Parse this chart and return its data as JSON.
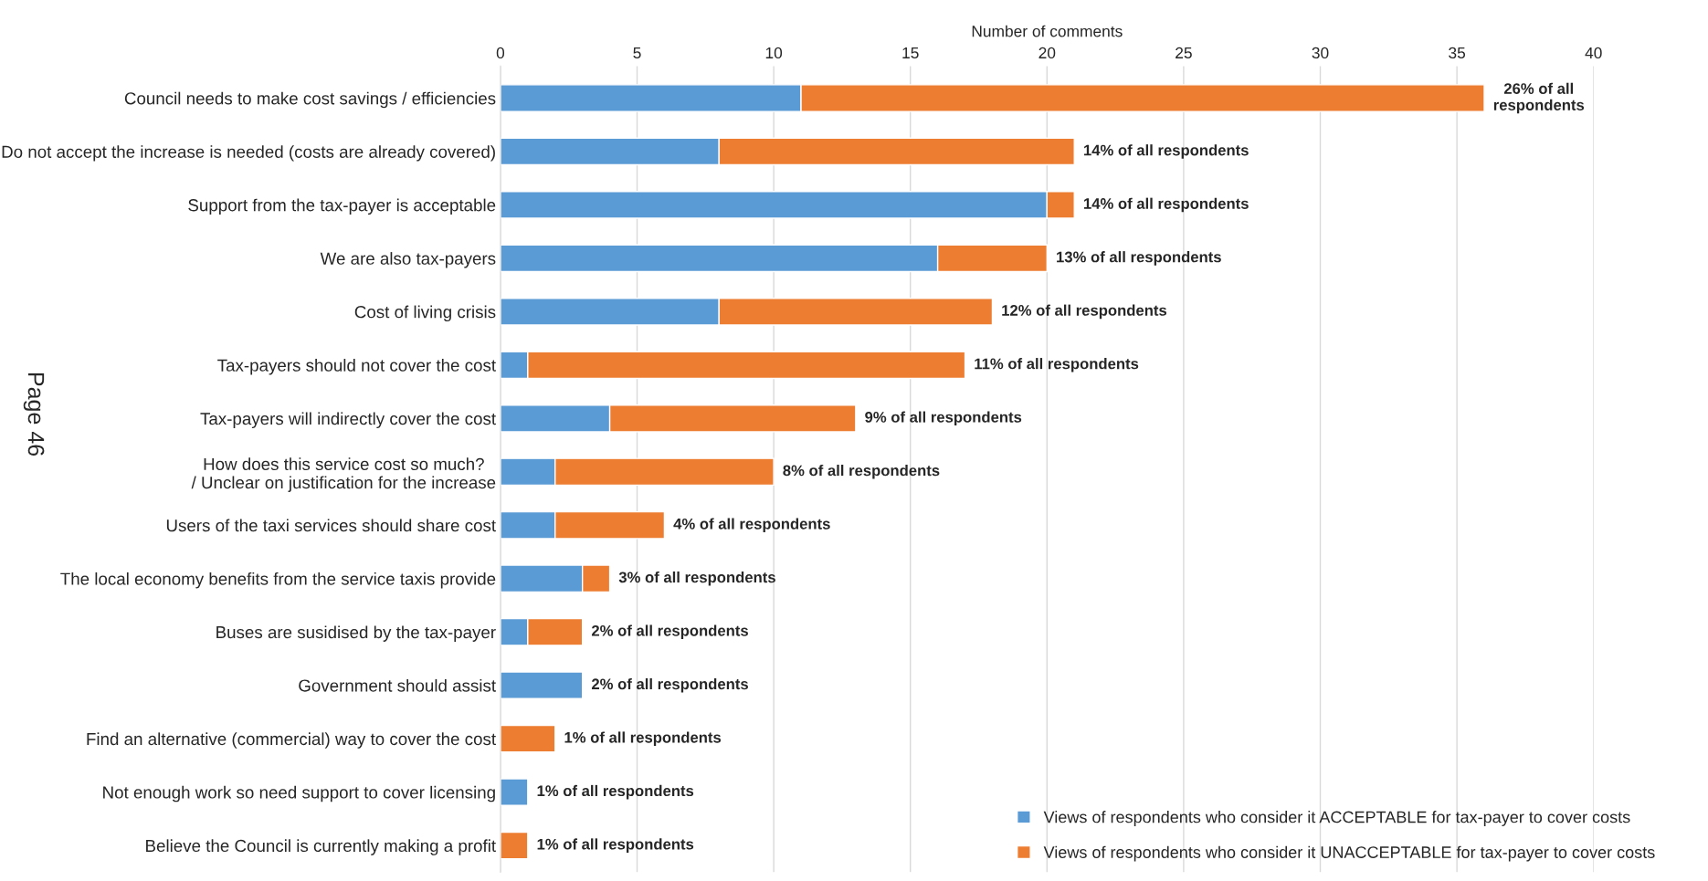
{
  "chart_data": {
    "type": "bar",
    "orientation": "horizontal",
    "stacked": true,
    "xlabel": "Number of comments",
    "categories": [
      "Council needs to make cost savings / efficiencies",
      "Do not accept the increase is needed (costs are already covered)",
      "Support from the tax-payer is acceptable",
      "We are also tax-payers",
      "Cost of living crisis",
      "Tax-payers should not cover the cost",
      "Tax-payers will indirectly cover the cost",
      "How does this service cost so much?\n/ Unclear on justification for the increase",
      "Users of the taxi services should share cost",
      "The local economy benefits from the service taxis provide",
      "Buses are susidised by the tax-payer",
      "Government should assist",
      "Find an alternative (commercial) way to cover the cost",
      "Not enough work so need support to cover licensing",
      "Believe the Council is currently making a profit"
    ],
    "series": [
      {
        "name": "Views of respondents who consider it ACCEPTABLE for tax-payer to cover costs",
        "color": "#5b9bd5",
        "values": [
          11,
          8,
          20,
          16,
          8,
          1,
          4,
          2,
          2,
          3,
          1,
          3,
          null,
          1,
          null
        ]
      },
      {
        "name": "Views of respondents who consider it UNACCEPTABLE for tax-payer to cover costs",
        "color": "#ed7d31",
        "values": [
          25,
          13,
          1,
          4,
          10,
          16,
          9,
          8,
          4,
          1,
          2,
          null,
          2,
          null,
          1
        ]
      }
    ],
    "xlim": [
      0,
      40
    ],
    "xticks": [
      0,
      5,
      10,
      15,
      20,
      25,
      30,
      35,
      40
    ],
    "grid": "x",
    "legend": "bottom right",
    "annotations": [
      "Page 46",
      {
        "text": "26% of all\nrespondents",
        "x": 36,
        "y": "Council needs to make cost savings / efficiencies"
      },
      {
        "text": "14% of all respondents",
        "x": 21,
        "y": "Do not accept the increase is needed (costs are already covered)"
      },
      {
        "text": "14% of all respondents",
        "x": 21,
        "y": "Support from the tax-payer is acceptable"
      },
      {
        "text": "13% of all respondents",
        "x": 20,
        "y": "We are also tax-payers"
      },
      {
        "text": "12% of all respondents",
        "x": 18,
        "y": "Cost of living crisis"
      },
      {
        "text": "11% of all respondents",
        "x": 17,
        "y": "Tax-payers should not cover the cost"
      },
      {
        "text": "9% of all respondents",
        "x": 13,
        "y": "Tax-payers will indirectly cover the cost"
      },
      {
        "text": "8% of all respondents",
        "x": 10,
        "y": "How does this service cost so much?\n/ Unclear on justification for the increase"
      },
      {
        "text": "4% of all respondents",
        "x": 6,
        "y": "Users of the taxi services should share cost"
      },
      {
        "text": "3% of all respondents",
        "x": 4,
        "y": "The local economy benefits from the service taxis provide"
      },
      {
        "text": "2% of all respondents",
        "x": 3,
        "y": "Buses are susidised by the tax-payer"
      },
      {
        "text": "2% of all respondents",
        "x": 3,
        "y": "Government should assist"
      },
      {
        "text": "1% of all respondents",
        "x": 2,
        "y": "Find an alternative (commercial) way to cover the cost"
      },
      {
        "text": "1% of all respondents",
        "x": 1,
        "y": "Not enough work so need support to cover licensing"
      },
      {
        "text": "1% of all respondents",
        "x": 1,
        "y": "Believe the Council is currently making a profit"
      }
    ]
  }
}
